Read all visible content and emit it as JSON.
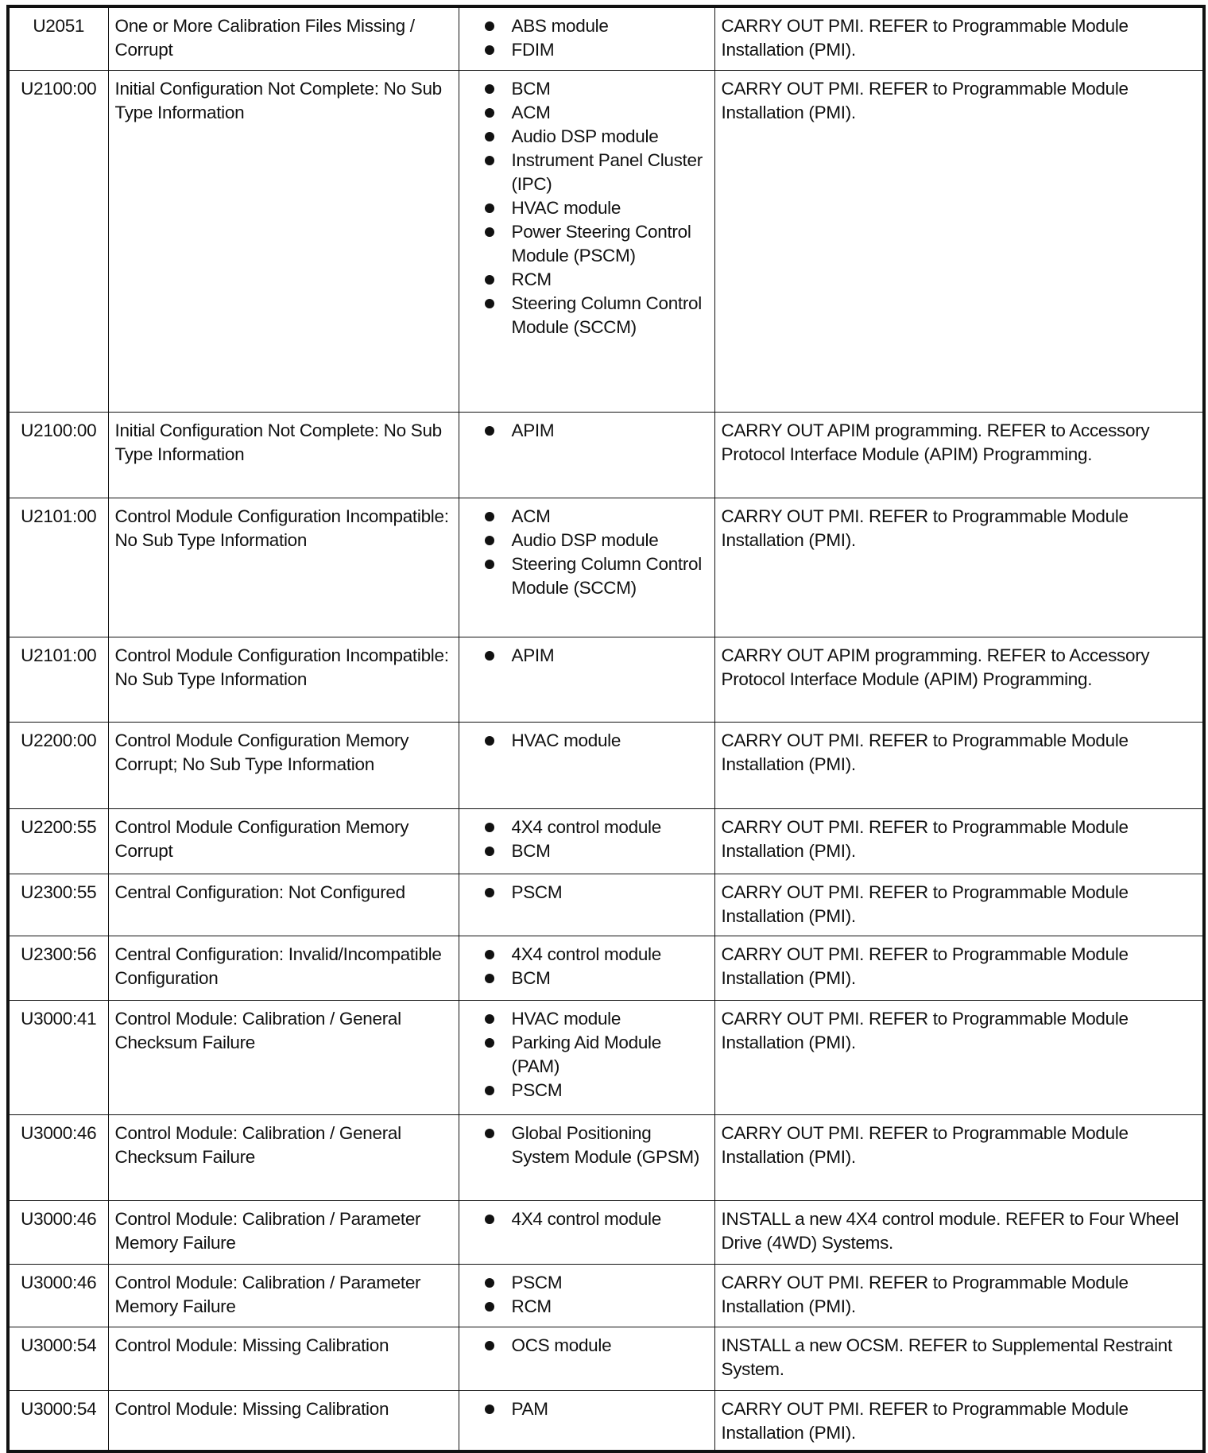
{
  "rows": [
    {
      "code": "U2051",
      "description": "One or More Calibration Files Missing / Corrupt",
      "modules": [
        "ABS module",
        "FDIM"
      ],
      "action": "CARRY OUT PMI. REFER to Programmable Module Installation (PMI)."
    },
    {
      "code": "U2100:00",
      "description": "Initial Configuration Not Complete: No Sub Type Information",
      "modules": [
        "BCM",
        "ACM",
        "Audio DSP module",
        "Instrument Panel Cluster (IPC)",
        "HVAC module",
        "Power Steering Control Module (PSCM)",
        "RCM",
        "Steering Column Control Module (SCCM)"
      ],
      "action": "CARRY OUT PMI. REFER to Programmable Module Installation (PMI)."
    },
    {
      "code": "U2100:00",
      "description": "Initial Configuration Not Complete: No Sub Type Information",
      "modules": [
        "APIM"
      ],
      "action": "CARRY OUT APIM programming. REFER to Accessory Protocol Interface Module (APIM) Programming."
    },
    {
      "code": "U2101:00",
      "description": "Control Module Configuration Incompatible: No Sub Type Information",
      "modules": [
        "ACM",
        "Audio DSP module",
        "Steering Column Control Module (SCCM)"
      ],
      "action": "CARRY OUT PMI. REFER to Programmable Module Installation (PMI)."
    },
    {
      "code": "U2101:00",
      "description": "Control Module Configuration Incompatible: No Sub Type Information",
      "modules": [
        "APIM"
      ],
      "action": "CARRY OUT APIM programming. REFER to Accessory Protocol Interface Module (APIM) Programming."
    },
    {
      "code": "U2200:00",
      "description": "Control Module Configuration Memory Corrupt; No Sub Type Information",
      "modules": [
        "HVAC module"
      ],
      "action": "CARRY OUT PMI. REFER to Programmable Module Installation (PMI)."
    },
    {
      "code": "U2200:55",
      "description": "Control Module Configuration Memory Corrupt",
      "modules": [
        "4X4 control module",
        "BCM"
      ],
      "action": "CARRY OUT PMI. REFER to Programmable Module Installation (PMI)."
    },
    {
      "code": "U2300:55",
      "description": "Central Configuration: Not Configured",
      "modules": [
        "PSCM"
      ],
      "action": "CARRY OUT PMI. REFER to Programmable Module Installation (PMI)."
    },
    {
      "code": "U2300:56",
      "description": "Central Configuration: Invalid/Incompatible Configuration",
      "modules": [
        "4X4 control module",
        "BCM"
      ],
      "action": "CARRY OUT PMI. REFER to Programmable Module Installation (PMI)."
    },
    {
      "code": "U3000:41",
      "description": "Control Module: Calibration / General Checksum Failure",
      "modules": [
        "HVAC module",
        "Parking Aid Module (PAM)",
        "PSCM"
      ],
      "action": "CARRY OUT PMI. REFER to Programmable Module Installation (PMI)."
    },
    {
      "code": "U3000:46",
      "description": "Control Module: Calibration / General Checksum Failure",
      "modules": [
        "Global Positioning System Module (GPSM)"
      ],
      "action": "CARRY OUT PMI. REFER to Programmable Module Installation (PMI)."
    },
    {
      "code": "U3000:46",
      "description": "Control Module: Calibration / Parameter Memory Failure",
      "modules": [
        "4X4 control module"
      ],
      "action": "INSTALL a new 4X4 control module. REFER to Four Wheel Drive (4WD) Systems."
    },
    {
      "code": "U3000:46",
      "description": "Control Module: Calibration / Parameter Memory Failure",
      "modules": [
        "PSCM",
        "RCM"
      ],
      "action": "CARRY OUT PMI. REFER to Programmable Module Installation (PMI)."
    },
    {
      "code": "U3000:54",
      "description": "Control Module: Missing Calibration",
      "modules": [
        "OCS module"
      ],
      "action": "INSTALL a new OCSM. REFER to Supplemental Restraint System."
    },
    {
      "code": "U3000:54",
      "description": "Control Module: Missing Calibration",
      "modules": [
        "PAM"
      ],
      "action": "CARRY OUT PMI. REFER to Programmable Module Installation (PMI)."
    }
  ]
}
